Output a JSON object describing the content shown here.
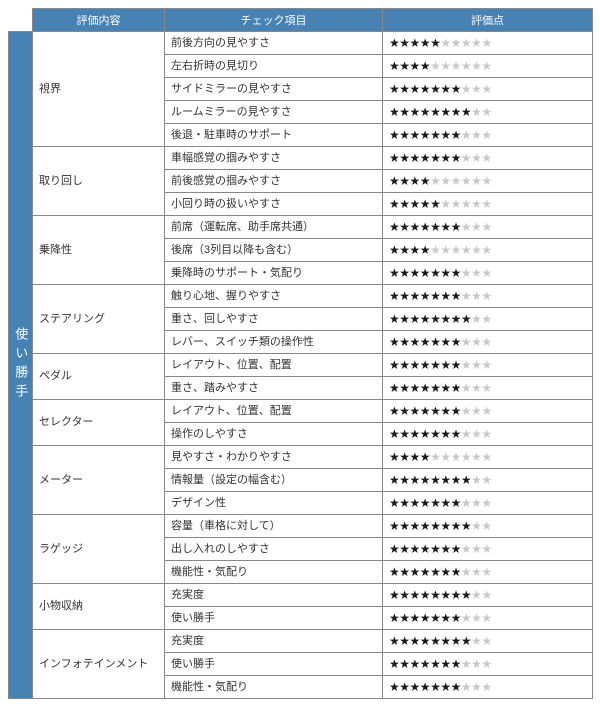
{
  "headers": {
    "eval": "評価内容",
    "check": "チェック項目",
    "score": "評価点"
  },
  "section_label": "使い勝手",
  "max_stars": 10,
  "colors": {
    "header_bg": "#4682b4",
    "header_fg": "#ffffff",
    "border": "#888888",
    "star_filled": "#1a1a1a",
    "star_empty": "#c8c8c8"
  },
  "col_widths": {
    "section": 24,
    "category": 132,
    "check": 218,
    "stars": 210
  },
  "categories": [
    {
      "name": "視界",
      "rows": [
        {
          "check": "前後方向の見やすさ",
          "stars": 5
        },
        {
          "check": "左右折時の見切り",
          "stars": 4
        },
        {
          "check": "サイドミラーの見やすさ",
          "stars": 7
        },
        {
          "check": "ルームミラーの見やすさ",
          "stars": 8
        },
        {
          "check": "後退・駐車時のサポート",
          "stars": 7
        }
      ]
    },
    {
      "name": "取り回し",
      "rows": [
        {
          "check": "車幅感覚の掴みやすさ",
          "stars": 7
        },
        {
          "check": "前後感覚の掴みやすさ",
          "stars": 4
        },
        {
          "check": "小回り時の扱いやすさ",
          "stars": 5
        }
      ]
    },
    {
      "name": "乗降性",
      "rows": [
        {
          "check": "前席（運転席、助手席共通）",
          "stars": 7
        },
        {
          "check": "後席（3列目以降も含む）",
          "stars": 4
        },
        {
          "check": "乗降時のサポート・気配り",
          "stars": 7
        }
      ]
    },
    {
      "name": "ステアリング",
      "rows": [
        {
          "check": "触り心地、握りやすさ",
          "stars": 7
        },
        {
          "check": "重さ、回しやすさ",
          "stars": 8
        },
        {
          "check": "レバー、スイッチ類の操作性",
          "stars": 7
        }
      ]
    },
    {
      "name": "ペダル",
      "rows": [
        {
          "check": "レイアウト、位置、配置",
          "stars": 7
        },
        {
          "check": "重さ、踏みやすさ",
          "stars": 7
        }
      ]
    },
    {
      "name": "セレクター",
      "rows": [
        {
          "check": "レイアウト、位置、配置",
          "stars": 7
        },
        {
          "check": "操作のしやすさ",
          "stars": 7
        }
      ]
    },
    {
      "name": "メーター",
      "rows": [
        {
          "check": "見やすさ・わかりやすさ",
          "stars": 4
        },
        {
          "check": "情報量（設定の幅含む）",
          "stars": 8
        },
        {
          "check": "デザイン性",
          "stars": 7
        }
      ]
    },
    {
      "name": "ラゲッジ",
      "rows": [
        {
          "check": "容量（車格に対して）",
          "stars": 8
        },
        {
          "check": "出し入れのしやすさ",
          "stars": 7
        },
        {
          "check": "機能性・気配り",
          "stars": 7
        }
      ]
    },
    {
      "name": "小物収納",
      "rows": [
        {
          "check": "充実度",
          "stars": 8
        },
        {
          "check": "使い勝手",
          "stars": 7
        }
      ]
    },
    {
      "name": "インフォテインメント",
      "rows": [
        {
          "check": "充実度",
          "stars": 8
        },
        {
          "check": "使い勝手",
          "stars": 7
        },
        {
          "check": "機能性・気配り",
          "stars": 7
        }
      ]
    }
  ]
}
